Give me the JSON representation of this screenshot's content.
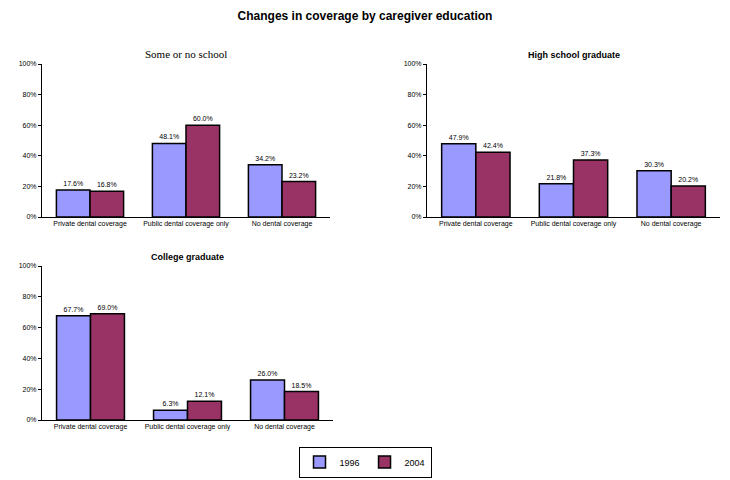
{
  "title": "Changes in coverage by caregiver education",
  "chart_data": [
    {
      "type": "bar",
      "title": "Some or no school",
      "categories": [
        "Private dental coverage",
        "Public dental coverage only",
        "No dental coverage"
      ],
      "series": [
        {
          "name": "1996",
          "color": "#9999ff",
          "values": [
            17.6,
            48.1,
            34.2
          ],
          "value_labels": [
            "17.6%",
            "48.1%",
            "34.2%"
          ]
        },
        {
          "name": "2004",
          "color": "#993366",
          "values": [
            16.8,
            60.0,
            23.2
          ],
          "value_labels": [
            "16.8%",
            "60.0%",
            "23.2%"
          ]
        }
      ],
      "ylim": [
        0,
        100
      ],
      "yticks": [
        {
          "value": 0,
          "label": "0%"
        },
        {
          "value": 20,
          "label": "20%"
        },
        {
          "value": 40,
          "label": "40%"
        },
        {
          "value": 60,
          "label": "60%"
        },
        {
          "value": 80,
          "label": "80%"
        },
        {
          "value": 100,
          "label": "100%"
        }
      ],
      "data_labels": true,
      "grid": false
    },
    {
      "type": "bar",
      "title": "High school graduate",
      "categories": [
        "Private dental coverage",
        "Public dental coverage only",
        "No dental coverage"
      ],
      "series": [
        {
          "name": "1996",
          "color": "#9999ff",
          "values": [
            47.9,
            21.8,
            30.3
          ],
          "value_labels": [
            "47.9%",
            "21.8%",
            "30.3%"
          ]
        },
        {
          "name": "2004",
          "color": "#993366",
          "values": [
            42.4,
            37.3,
            20.2
          ],
          "value_labels": [
            "42.4%",
            "37.3%",
            "20.2%"
          ]
        }
      ],
      "ylim": [
        0,
        100
      ],
      "yticks": [
        {
          "value": 0,
          "label": "0%"
        },
        {
          "value": 20,
          "label": "20%"
        },
        {
          "value": 40,
          "label": "40%"
        },
        {
          "value": 60,
          "label": "60%"
        },
        {
          "value": 80,
          "label": "80%"
        },
        {
          "value": 100,
          "label": "100%"
        }
      ],
      "data_labels": true,
      "grid": false
    },
    {
      "type": "bar",
      "title": "College graduate",
      "categories": [
        "Private dental coverage",
        "Public dental coverage only",
        "No dental coverage"
      ],
      "series": [
        {
          "name": "1996",
          "color": "#9999ff",
          "values": [
            67.7,
            6.3,
            26.0
          ],
          "value_labels": [
            "67.7%",
            "6.3%",
            "26.0%"
          ]
        },
        {
          "name": "2004",
          "color": "#993366",
          "values": [
            69.0,
            12.1,
            18.5
          ],
          "value_labels": [
            "69.0%",
            "12.1%",
            "18.5%"
          ]
        }
      ],
      "ylim": [
        0,
        100
      ],
      "yticks": [
        {
          "value": 0,
          "label": "0%"
        },
        {
          "value": 20,
          "label": "20%"
        },
        {
          "value": 40,
          "label": "40%"
        },
        {
          "value": 60,
          "label": "60%"
        },
        {
          "value": 80,
          "label": "80%"
        },
        {
          "value": 100,
          "label": "100%"
        }
      ],
      "data_labels": true,
      "grid": false
    }
  ]
}
